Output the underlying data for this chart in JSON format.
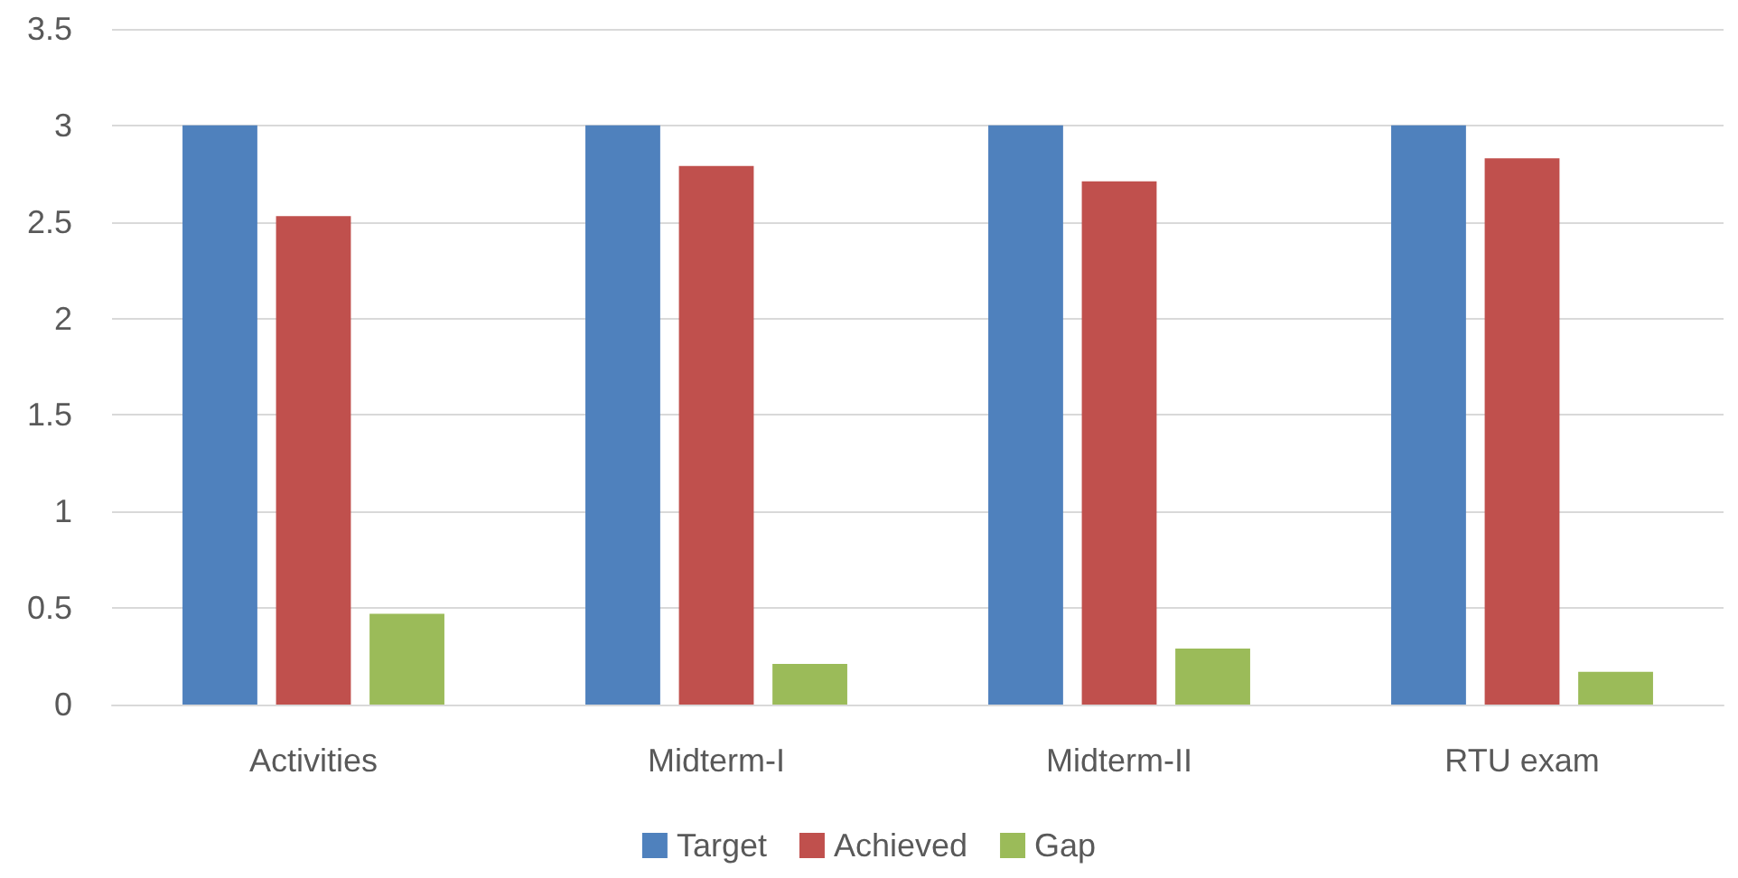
{
  "chart_data": {
    "type": "bar",
    "categories": [
      "Activities",
      "Midterm-I",
      "Midterm-II",
      "RTU exam"
    ],
    "series": [
      {
        "name": "Target",
        "color": "#4f81bd",
        "values": [
          3,
          3,
          3,
          3
        ]
      },
      {
        "name": "Achieved",
        "color": "#c0504d",
        "values": [
          2.53,
          2.79,
          2.71,
          2.83
        ]
      },
      {
        "name": "Gap",
        "color": "#9bbb59",
        "values": [
          0.47,
          0.21,
          0.29,
          0.17
        ]
      }
    ],
    "ylim": [
      0,
      3.5
    ],
    "yticks": [
      0,
      0.5,
      1,
      1.5,
      2,
      2.5,
      3,
      3.5
    ],
    "grid": "y",
    "legend": "bottom"
  }
}
